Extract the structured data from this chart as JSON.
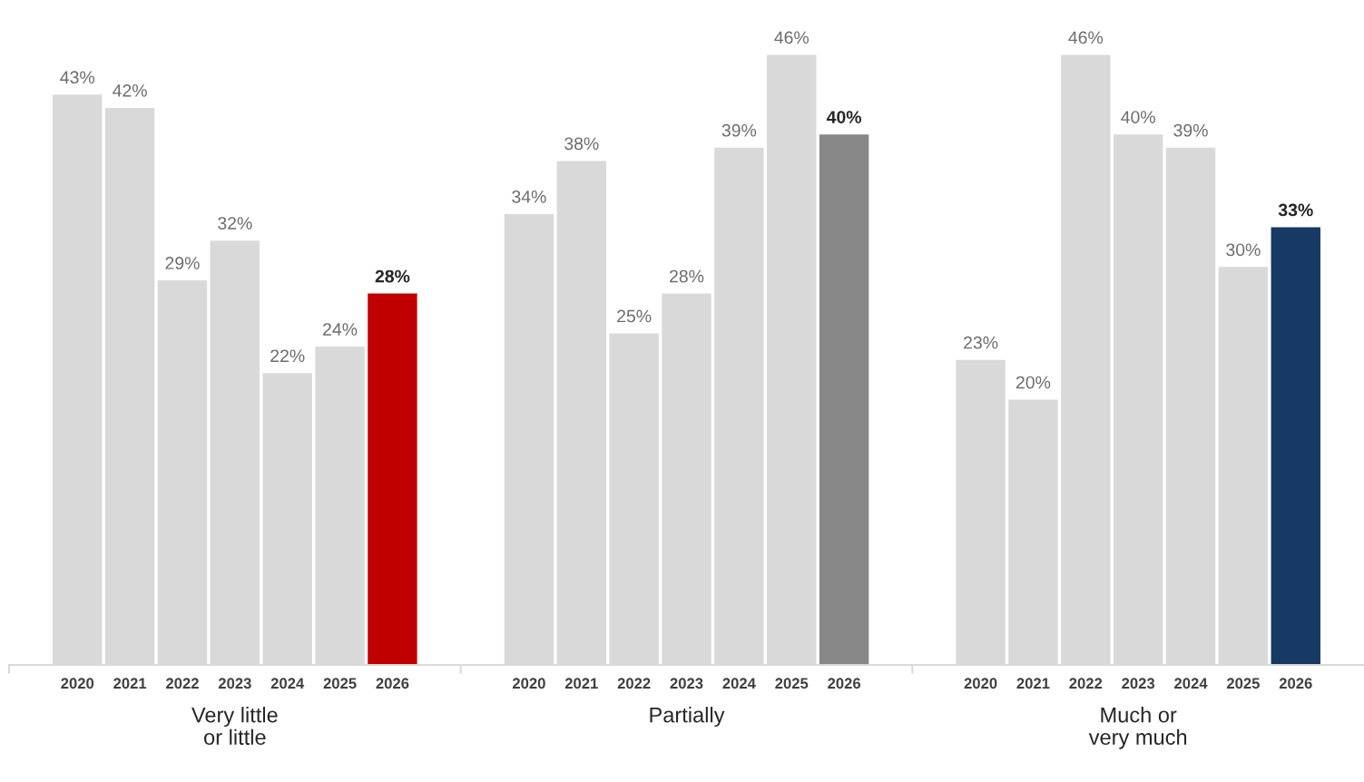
{
  "chart_data": [
    {
      "type": "bar",
      "xlabel": "Very little\nor little",
      "categories": [
        "2020",
        "2021",
        "2022",
        "2023",
        "2024",
        "2025",
        "2026"
      ],
      "values": [
        43,
        42,
        29,
        32,
        22,
        24,
        28
      ],
      "colors": [
        "#d9d9d9",
        "#d9d9d9",
        "#d9d9d9",
        "#d9d9d9",
        "#d9d9d9",
        "#d9d9d9",
        "#c00000"
      ],
      "value_labels": [
        "43%",
        "42%",
        "29%",
        "32%",
        "22%",
        "24%",
        "28%"
      ],
      "tick_labels": "x",
      "grid": false,
      "legend": false
    },
    {
      "type": "bar",
      "xlabel": "Partially",
      "categories": [
        "2020",
        "2021",
        "2022",
        "2023",
        "2024",
        "2025",
        "2026"
      ],
      "values": [
        34,
        38,
        25,
        28,
        39,
        46,
        40
      ],
      "colors": [
        "#d9d9d9",
        "#d9d9d9",
        "#d9d9d9",
        "#d9d9d9",
        "#d9d9d9",
        "#d9d9d9",
        "#878787"
      ],
      "value_labels": [
        "34%",
        "38%",
        "25%",
        "28%",
        "39%",
        "46%",
        "40%"
      ],
      "tick_labels": "x",
      "grid": false,
      "legend": false
    },
    {
      "type": "bar",
      "xlabel": "Much or\nvery much",
      "categories": [
        "2020",
        "2021",
        "2022",
        "2023",
        "2024",
        "2025",
        "2026"
      ],
      "values": [
        23,
        20,
        46,
        40,
        39,
        30,
        33
      ],
      "colors": [
        "#d9d9d9",
        "#d9d9d9",
        "#d9d9d9",
        "#d9d9d9",
        "#d9d9d9",
        "#d9d9d9",
        "#163a63"
      ],
      "value_labels": [
        "23%",
        "20%",
        "46%",
        "40%",
        "39%",
        "30%",
        "33%"
      ],
      "tick_labels": "x",
      "grid": false,
      "legend": false
    }
  ]
}
